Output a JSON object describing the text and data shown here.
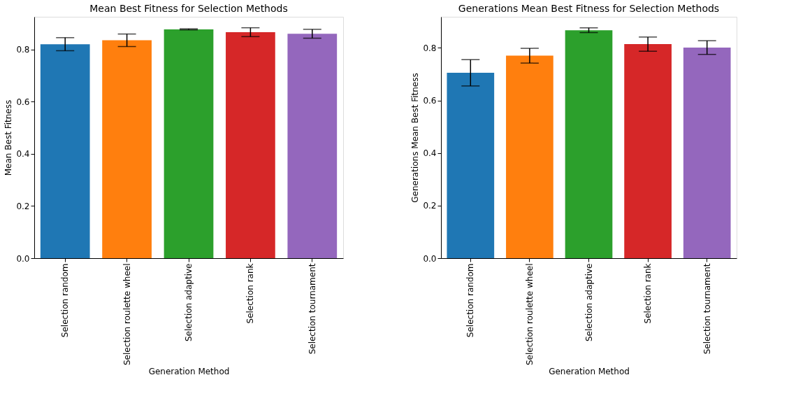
{
  "chart_data": [
    {
      "type": "bar",
      "title": "Mean Best Fitness for Selection Methods",
      "xlabel": "Generation Method",
      "ylabel": "Mean Best Fitness",
      "categories": [
        "Selection random",
        "Selection roulette wheel",
        "Selection adaptive",
        "Selection rank",
        "Selection tournament"
      ],
      "values": [
        0.82,
        0.835,
        0.877,
        0.866,
        0.86
      ],
      "errors": [
        0.025,
        0.024,
        0.002,
        0.017,
        0.017
      ],
      "colors": [
        "#1f77b4",
        "#ff7f0e",
        "#2ca02c",
        "#d62728",
        "#9467bd"
      ],
      "ylim": [
        0,
        0.925
      ],
      "yticks": [
        {
          "value": 0,
          "label": "0.0"
        },
        0.2,
        0.4,
        0.6,
        0.8
      ],
      "grid": false
    },
    {
      "type": "bar",
      "title": "Generations Mean Best Fitness for Selection Methods",
      "xlabel": "Generation Method",
      "ylabel": "Generations Mean Best Fitness",
      "categories": [
        "Selection random",
        "Selection roulette wheel",
        "Selection adaptive",
        "Selection rank",
        "Selection tournament"
      ],
      "values": [
        0.705,
        0.77,
        0.867,
        0.814,
        0.801
      ],
      "errors": [
        0.05,
        0.028,
        0.009,
        0.027,
        0.026
      ],
      "colors": [
        "#1f77b4",
        "#ff7f0e",
        "#2ca02c",
        "#d62728",
        "#9467bd"
      ],
      "ylim": [
        0,
        0.918
      ],
      "yticks": [
        {
          "value": 0,
          "label": "0.0"
        },
        0.2,
        0.4,
        0.6,
        0.8
      ],
      "grid": false
    }
  ]
}
